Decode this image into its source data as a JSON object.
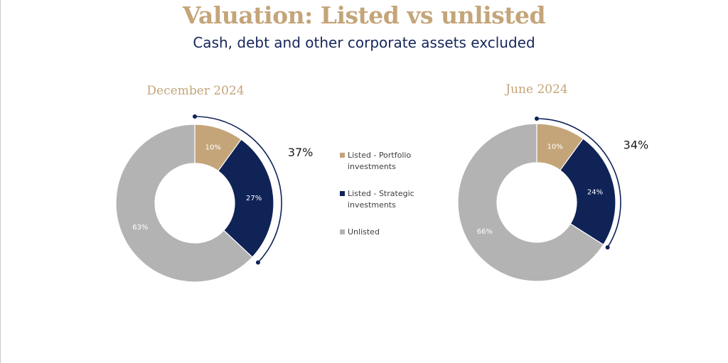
{
  "title": "Valuation: Listed vs unlisted",
  "subtitle": "Cash, debt and other corporate assets excluded",
  "colors": {
    "portfolio": "#c4a57a",
    "strategic": "#0f2357",
    "unlisted": "#b3b3b3"
  },
  "legend": [
    {
      "label_line1": "Listed - Portfolio",
      "label_line2": "investments",
      "color_key": "portfolio"
    },
    {
      "label_line1": "Listed - Strategic",
      "label_line2": "investments",
      "color_key": "strategic"
    },
    {
      "label_line1": "Unlisted",
      "label_line2": "",
      "color_key": "unlisted"
    }
  ],
  "chart_data": [
    {
      "type": "pie",
      "title": "December 2024",
      "categories": [
        "Listed - Portfolio investments",
        "Listed - Strategic investments",
        "Unlisted"
      ],
      "values": [
        10,
        27,
        63
      ],
      "labels": [
        "10%",
        "27%",
        "63%"
      ],
      "bracket_label": "37%"
    },
    {
      "type": "pie",
      "title": "June 2024",
      "categories": [
        "Listed - Portfolio investments",
        "Listed - Strategic investments",
        "Unlisted"
      ],
      "values": [
        10,
        24,
        66
      ],
      "labels": [
        "10%",
        "24%",
        "66%"
      ],
      "bracket_label": "34%"
    }
  ]
}
